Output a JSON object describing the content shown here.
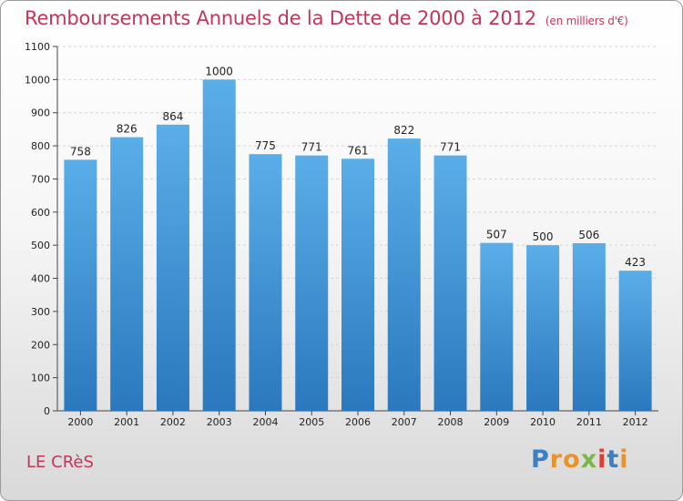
{
  "chart_data": {
    "type": "bar",
    "title": "Remboursements Annuels de la Dette de 2000 à 2012",
    "subtitle": "(en milliers d'€)",
    "categories": [
      "2000",
      "2001",
      "2002",
      "2003",
      "2004",
      "2005",
      "2006",
      "2007",
      "2008",
      "2009",
      "2010",
      "2011",
      "2012"
    ],
    "values": [
      758,
      826,
      864,
      1000,
      775,
      771,
      761,
      822,
      771,
      507,
      500,
      506,
      423
    ],
    "ylim": [
      0,
      1100
    ],
    "yticks": [
      0,
      100,
      200,
      300,
      400,
      500,
      600,
      700,
      800,
      900,
      1000,
      1100
    ],
    "grid": true,
    "bar_color": "#4aa0df"
  },
  "commune": "LE CRèS",
  "logo": {
    "text": "Proxiti",
    "colors": [
      "#3b7fc4",
      "#e8932c",
      "#e8932c",
      "#7ab648",
      "#e03c31",
      "#3b7fc4",
      "#e8932c"
    ]
  }
}
